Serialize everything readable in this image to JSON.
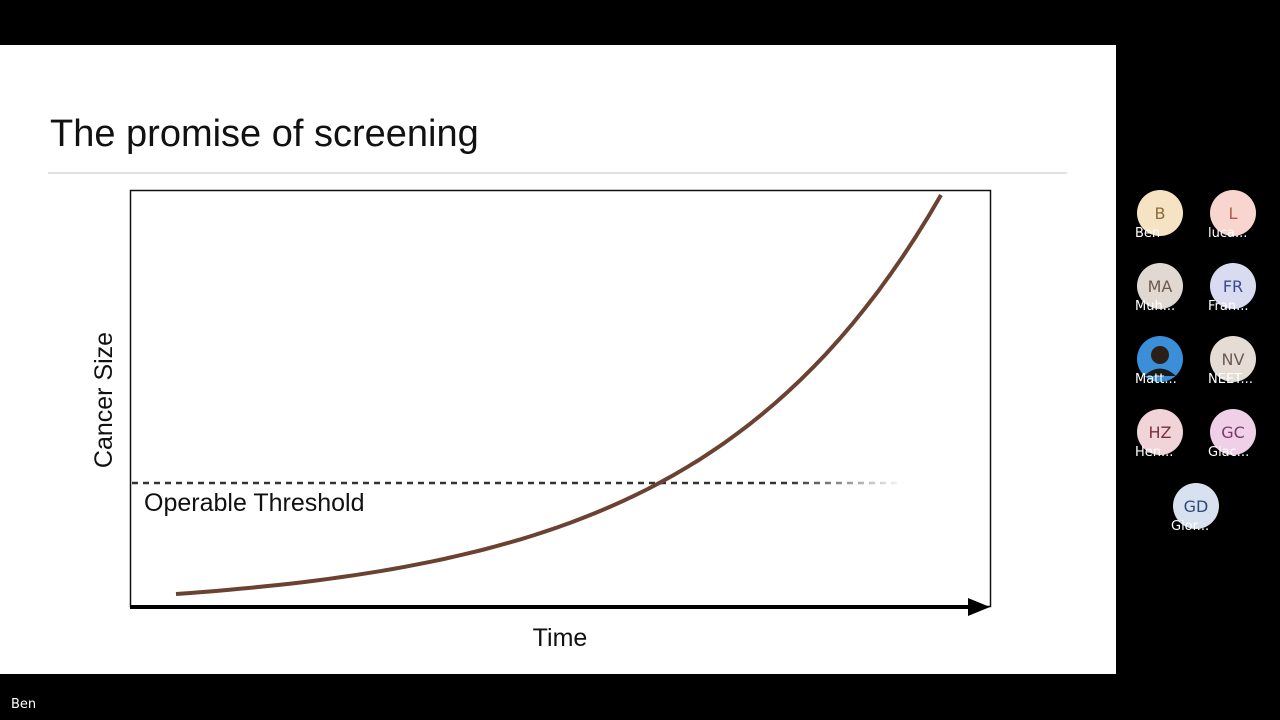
{
  "slide": {
    "title": "The promise of screening",
    "diagram": {
      "y_label": "Cancer Size",
      "x_label": "Time",
      "threshold_label": "Operable Threshold"
    }
  },
  "participants": [
    {
      "initials": "B",
      "name": "Ben",
      "color": "#f6e3c4",
      "text_color": "#8a6a3a"
    },
    {
      "initials": "L",
      "name": "luca...",
      "color": "#f8d6cf",
      "text_color": "#b05a4a"
    },
    {
      "initials": "MA",
      "name": "Muh...",
      "color": "#e2d8d2",
      "text_color": "#6b5a50"
    },
    {
      "initials": "FR",
      "name": "Fran...",
      "color": "#d9dcf0",
      "text_color": "#3b4a8a"
    },
    {
      "name": "Matt...",
      "color": "#3a8fd8"
    },
    {
      "initials": "NV",
      "name": "NEET...",
      "color": "#e5dcd6",
      "text_color": "#6b5a50"
    },
    {
      "initials": "HZ",
      "name": "Hen...",
      "color": "#f0d4d8",
      "text_color": "#7a3040"
    },
    {
      "initials": "GC",
      "name": "Giac...",
      "color": "#efd0e6",
      "text_color": "#7a3a6a"
    },
    {
      "initials": "GD",
      "name": "Gior...",
      "color": "#d7e1f0",
      "text_color": "#2e4a7a"
    }
  ],
  "presenter": "Ben"
}
